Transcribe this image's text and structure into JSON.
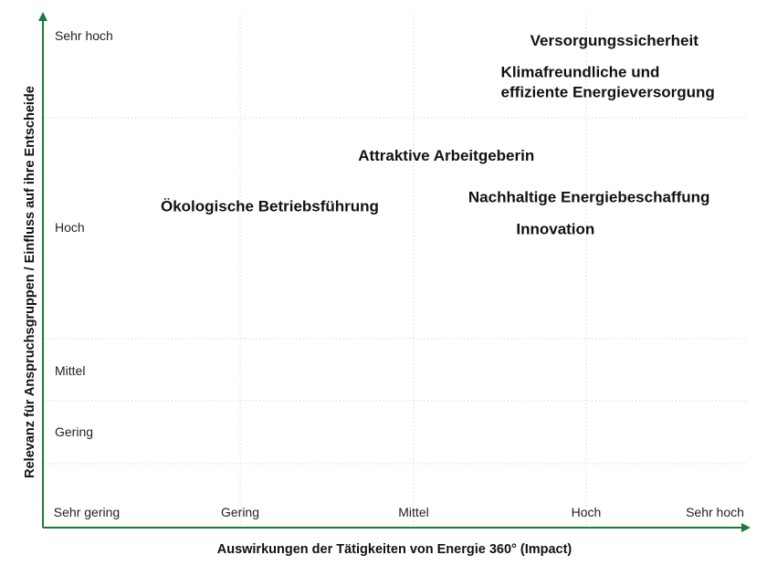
{
  "chart_data": {
    "type": "scatter",
    "title": "",
    "xlabel": "Auswirkungen der Tätigkeiten von Energie 360° (Impact)",
    "ylabel": "Relevanz für Anspruchsgruppen / Einfluss auf ihre Entscheide",
    "x_ticks": [
      "Sehr gering",
      "Gering",
      "Mittel",
      "Hoch",
      "Sehr hoch"
    ],
    "y_ticks": [
      "Sehr hoch",
      "Hoch",
      "Mittel",
      "Gering"
    ],
    "xlim": [
      0,
      4.2
    ],
    "ylim": [
      0,
      5.6
    ],
    "grid": true,
    "colors": {
      "axis": "#1a7a3a",
      "grid": "#c8c8c8",
      "text": "#111111"
    },
    "points": [
      {
        "label_lines": [
          "Versorgungssicherheit"
        ],
        "x": 3.4,
        "y": 5.3
      },
      {
        "label_lines": [
          "Klimafreundliche und",
          "effiziente Energieversorgung"
        ],
        "x": 3.35,
        "y": 4.85
      },
      {
        "label_lines": [
          "Attraktive Arbeitgeberin"
        ],
        "x": 2.4,
        "y": 4.05
      },
      {
        "label_lines": [
          "Nachhaltige Energiebeschaffung"
        ],
        "x": 3.25,
        "y": 3.6
      },
      {
        "label_lines": [
          "Ökologische Betriebsführung"
        ],
        "x": 1.35,
        "y": 3.5
      },
      {
        "label_lines": [
          "Innovation"
        ],
        "x": 3.05,
        "y": 3.25
      }
    ]
  }
}
